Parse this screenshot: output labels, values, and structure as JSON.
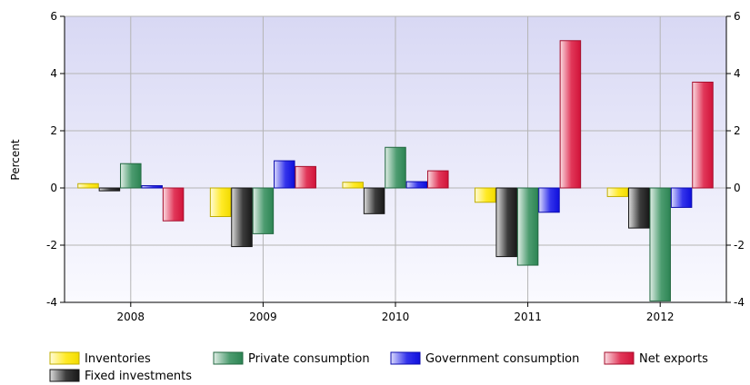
{
  "chart_data": {
    "type": "bar",
    "title": "",
    "xlabel": "",
    "ylabel": "Percent",
    "ylim": [
      -4,
      6
    ],
    "yticks": [
      -4,
      -2,
      0,
      2,
      4,
      6
    ],
    "categories": [
      "2008",
      "2009",
      "2010",
      "2011",
      "2012"
    ],
    "grid": true,
    "secondary_y_axis": true,
    "legend_position": "bottom-left",
    "series": [
      {
        "name": "Inventories",
        "color": "#FFE600",
        "values": [
          0.15,
          -1.0,
          0.2,
          -0.5,
          -0.3
        ]
      },
      {
        "name": "Fixed investments",
        "color": "#1A1A1A",
        "values": [
          -0.1,
          -2.05,
          -0.9,
          -2.4,
          -1.4
        ]
      },
      {
        "name": "Private consumption",
        "color": "#2E8B57",
        "values": [
          0.85,
          -1.6,
          1.42,
          -2.7,
          -3.95
        ]
      },
      {
        "name": "Government consumption",
        "color": "#1010E8",
        "values": [
          0.08,
          0.95,
          0.22,
          -0.85,
          -0.68
        ]
      },
      {
        "name": "Net exports",
        "color": "#DC143C",
        "values": [
          -1.15,
          0.75,
          0.6,
          5.15,
          3.7
        ]
      }
    ],
    "legend_order": [
      0,
      2,
      3,
      4,
      1
    ]
  }
}
